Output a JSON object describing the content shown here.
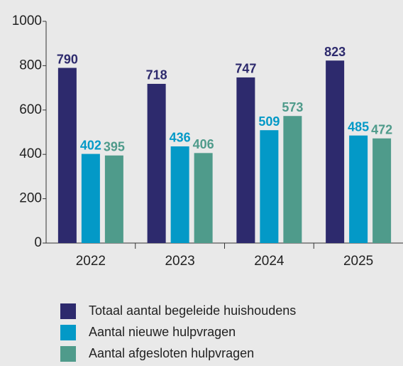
{
  "chart_data": {
    "type": "bar",
    "categories": [
      "2022",
      "2023",
      "2024",
      "2025"
    ],
    "series": [
      {
        "name": "Totaal aantal begeleide huishoudens",
        "color": "#2d2a6d",
        "values": [
          790,
          718,
          747,
          823
        ]
      },
      {
        "name": "Aantal nieuwe hulpvragen",
        "color": "#0399c7",
        "values": [
          402,
          436,
          509,
          485
        ]
      },
      {
        "name": "Aantal afgesloten hulpvragen",
        "color": "#4f9b8b",
        "values": [
          395,
          406,
          573,
          472
        ]
      }
    ],
    "ylim": [
      0,
      1000
    ],
    "yticks": [
      0,
      200,
      400,
      600,
      800,
      1000
    ],
    "grid": false
  }
}
